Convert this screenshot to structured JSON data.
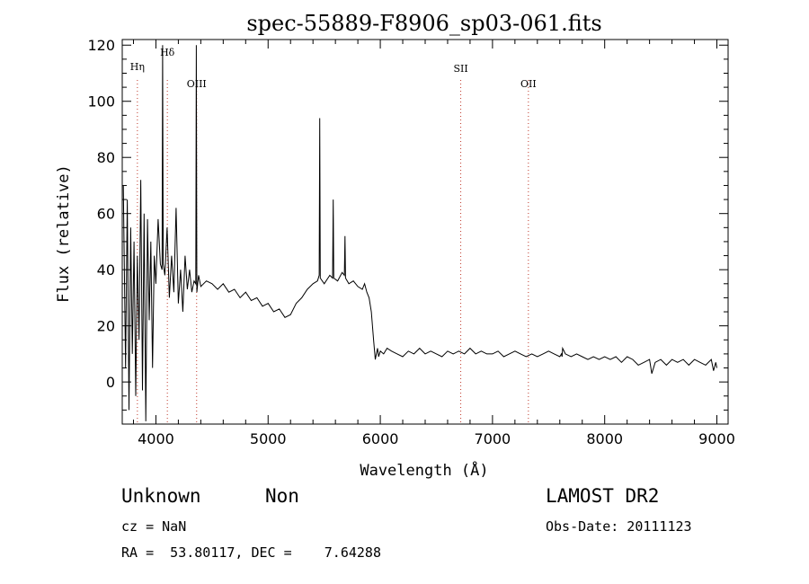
{
  "chart_data": {
    "type": "line",
    "title": "spec-55889-F8906_sp03-061.fits",
    "xlabel": "Wavelength (Å)",
    "ylabel": "Flux (relative)",
    "xlim": [
      3700,
      9100
    ],
    "ylim": [
      -15,
      122
    ],
    "x_ticks": [
      4000,
      5000,
      6000,
      7000,
      8000,
      9000
    ],
    "y_ticks": [
      0,
      20,
      40,
      60,
      80,
      100,
      120
    ],
    "grid": false,
    "legend": "none",
    "line_color": "#000000",
    "marker_color": "#c0392b",
    "lines": [
      {
        "label": "Hη",
        "x": 3835
      },
      {
        "label": "Hδ",
        "x": 4102
      },
      {
        "label": "OIII",
        "x": 4363
      },
      {
        "label": "SII",
        "x": 6717
      },
      {
        "label": "OII",
        "x": 7320
      }
    ],
    "series": [
      {
        "x": [
          3710,
          3730,
          3745,
          3760,
          3775,
          3790,
          3805,
          3820,
          3835,
          3850,
          3865,
          3880,
          3895,
          3910,
          3925,
          3940,
          3955,
          3970,
          3985,
          4000,
          4020,
          4040,
          4055,
          4060,
          4065,
          4080,
          4100,
          4120,
          4140,
          4160,
          4180,
          4200,
          4220,
          4240,
          4260,
          4280,
          4300,
          4320,
          4340,
          4355,
          4360,
          4365,
          4380,
          4400,
          4450,
          4500,
          4550,
          4600,
          4650,
          4700,
          4750,
          4800,
          4850,
          4900,
          4950,
          5000,
          5050,
          5100,
          5150,
          5200,
          5250,
          5300,
          5350,
          5400,
          5440,
          5455,
          5460,
          5465,
          5500,
          5550,
          5575,
          5580,
          5585,
          5620,
          5660,
          5680,
          5685,
          5690,
          5720,
          5760,
          5800,
          5840,
          5860,
          5880,
          5900,
          5920,
          5940,
          5955,
          5965,
          5975,
          5985,
          6000,
          6030,
          6060,
          6100,
          6150,
          6200,
          6250,
          6300,
          6350,
          6400,
          6450,
          6500,
          6550,
          6600,
          6650,
          6700,
          6750,
          6800,
          6850,
          6900,
          6950,
          7000,
          7050,
          7100,
          7150,
          7200,
          7250,
          7300,
          7350,
          7400,
          7450,
          7500,
          7550,
          7600,
          7615,
          7620,
          7625,
          7650,
          7700,
          7750,
          7800,
          7850,
          7900,
          7950,
          8000,
          8050,
          8100,
          8150,
          8200,
          8250,
          8300,
          8350,
          8400,
          8420,
          8450,
          8500,
          8550,
          8600,
          8650,
          8700,
          8750,
          8800,
          8850,
          8900,
          8950,
          8970,
          8990,
          9000
        ],
        "y": [
          70,
          5,
          65,
          -10,
          55,
          10,
          50,
          -5,
          45,
          15,
          72,
          -3,
          60,
          -14,
          58,
          22,
          50,
          5,
          45,
          35,
          58,
          42,
          40,
          120,
          42,
          38,
          55,
          30,
          45,
          32,
          62,
          28,
          40,
          25,
          45,
          33,
          40,
          32,
          36,
          35,
          120,
          32,
          38,
          34,
          36,
          35,
          33,
          35,
          32,
          33,
          30,
          32,
          29,
          30,
          27,
          28,
          25,
          26,
          23,
          24,
          28,
          30,
          33,
          35,
          36,
          38,
          94,
          37,
          35,
          38,
          37,
          65,
          37,
          36,
          39,
          38,
          52,
          37,
          35,
          36,
          34,
          33,
          35,
          32,
          30,
          25,
          15,
          8,
          10,
          12,
          9,
          11,
          10,
          12,
          11,
          10,
          9,
          11,
          10,
          12,
          10,
          11,
          10,
          9,
          11,
          10,
          11,
          10,
          12,
          10,
          11,
          10,
          10,
          11,
          9,
          10,
          11,
          10,
          9,
          10,
          9,
          10,
          11,
          10,
          9,
          10,
          9,
          12,
          10,
          9,
          10,
          9,
          8,
          9,
          8,
          9,
          8,
          9,
          7,
          9,
          8,
          6,
          7,
          8,
          3,
          7,
          8,
          6,
          8,
          7,
          8,
          6,
          8,
          7,
          6,
          8,
          4,
          7,
          5
        ]
      }
    ]
  },
  "info": {
    "object_class": "Unknown",
    "object_subclass": "Non",
    "survey": "LAMOST DR2",
    "redshift": "cz = NaN",
    "obs_date": "Obs-Date: 20111123",
    "coords": "RA =  53.80117, DEC =    7.64288"
  }
}
